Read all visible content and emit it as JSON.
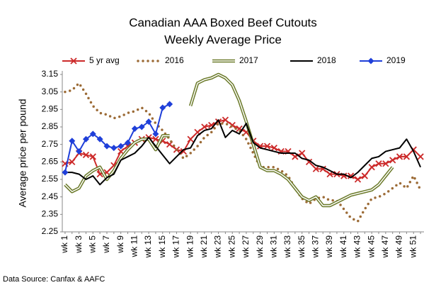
{
  "chart_data": {
    "type": "line",
    "title": "Canadian AAA Boxed Beef Cutouts",
    "subtitle": "Weekly Average Price",
    "y_label": "Average price per pound",
    "source": "Data Source: Canfax & AAFC",
    "categories": [
      "wk 1",
      null,
      "wk 3",
      null,
      "wk 5",
      null,
      "wk 7",
      null,
      "wk 9",
      null,
      "wk 11",
      null,
      "wk 13",
      null,
      "wk 15",
      null,
      "wk 17",
      null,
      "wk 19",
      null,
      "wk 21",
      null,
      "wk 23",
      null,
      "wk 25",
      null,
      "wk 27",
      null,
      "wk 29",
      null,
      "wk 31",
      null,
      "wk 33",
      null,
      "wk 35",
      null,
      "wk 37",
      null,
      "wk 39",
      null,
      "wk 41",
      null,
      "wk 43",
      null,
      "wk 45",
      null,
      "wk 47",
      null,
      "wk 49",
      null,
      "wk 51",
      null
    ],
    "ylim": [
      2.25,
      3.15
    ],
    "yticks": [
      2.25,
      2.35,
      2.45,
      2.55,
      2.65,
      2.75,
      2.85,
      2.95,
      3.05,
      3.15
    ],
    "grid": false,
    "legend": "top",
    "series": [
      {
        "name": "5 yr avg",
        "color": "#cc2a2a",
        "style": "x-marker",
        "values": [
          2.64,
          2.65,
          2.7,
          2.69,
          2.68,
          2.58,
          2.59,
          2.63,
          2.71,
          2.74,
          2.76,
          2.78,
          2.79,
          2.78,
          2.77,
          2.75,
          2.72,
          2.71,
          2.78,
          2.82,
          2.85,
          2.86,
          2.88,
          2.89,
          2.86,
          2.84,
          2.82,
          2.77,
          2.74,
          2.74,
          2.73,
          2.71,
          2.71,
          2.68,
          2.7,
          2.65,
          2.61,
          2.61,
          2.58,
          2.58,
          2.57,
          2.57,
          2.55,
          2.57,
          2.62,
          2.64,
          2.64,
          2.66,
          2.68,
          2.68,
          2.72,
          2.68
        ]
      },
      {
        "name": "2016",
        "color": "#9c6b36",
        "style": "dotted",
        "values": [
          3.05,
          3.06,
          3.1,
          3.04,
          2.97,
          2.93,
          2.92,
          2.9,
          2.91,
          2.93,
          2.94,
          2.96,
          2.93,
          2.87,
          2.83,
          2.78,
          2.72,
          2.67,
          2.7,
          2.74,
          2.79,
          2.82,
          2.87,
          2.87,
          2.85,
          2.83,
          2.78,
          2.7,
          2.62,
          2.62,
          2.62,
          2.6,
          2.57,
          2.5,
          2.44,
          2.41,
          2.44,
          2.45,
          2.43,
          2.43,
          2.38,
          2.33,
          2.31,
          2.38,
          2.44,
          2.45,
          2.47,
          2.5,
          2.53,
          2.5,
          2.57,
          2.49
        ]
      },
      {
        "name": "2017",
        "color": "#6b7a2a",
        "style": "double",
        "values": [
          2.52,
          2.48,
          2.5,
          2.57,
          2.6,
          2.62,
          2.55,
          2.6,
          2.67,
          2.72,
          2.76,
          2.78,
          2.78,
          2.72,
          2.8,
          2.8,
          null,
          null,
          2.97,
          3.1,
          3.12,
          3.13,
          3.15,
          3.13,
          3.09,
          3.0,
          2.88,
          2.75,
          2.62,
          2.6,
          2.6,
          2.58,
          2.55,
          2.5,
          2.45,
          2.43,
          2.45,
          2.4,
          2.4,
          2.42,
          2.44,
          2.46,
          2.47,
          2.48,
          2.49,
          2.52,
          2.57,
          2.62,
          null,
          null,
          null,
          null
        ]
      },
      {
        "name": "2018",
        "color": "#000000",
        "style": "solid",
        "values": [
          2.59,
          2.59,
          2.58,
          2.55,
          2.57,
          2.52,
          2.56,
          2.58,
          2.66,
          2.68,
          2.7,
          2.74,
          2.79,
          2.74,
          2.69,
          2.64,
          2.68,
          2.72,
          2.73,
          2.8,
          2.83,
          2.84,
          2.89,
          2.79,
          2.83,
          2.81,
          2.87,
          2.76,
          2.73,
          2.72,
          2.71,
          2.7,
          2.7,
          2.7,
          2.67,
          2.66,
          2.63,
          2.62,
          2.6,
          2.58,
          2.58,
          2.56,
          2.59,
          2.63,
          2.67,
          2.68,
          2.71,
          2.72,
          2.73,
          2.78,
          2.71,
          2.62
        ]
      },
      {
        "name": "2019",
        "color": "#1f3fd9",
        "style": "diamond-marker",
        "values": [
          2.59,
          2.77,
          2.71,
          2.78,
          2.81,
          2.78,
          2.74,
          2.73,
          2.74,
          2.76,
          2.84,
          2.85,
          2.88,
          2.81,
          2.96,
          2.98,
          null,
          null,
          null,
          null,
          null,
          null,
          null,
          null,
          null,
          null,
          null,
          null,
          null,
          null,
          null,
          null,
          null,
          null,
          null,
          null,
          null,
          null,
          null,
          null,
          null,
          null,
          null,
          null,
          null,
          null,
          null,
          null,
          null,
          null,
          null,
          null
        ]
      }
    ]
  }
}
